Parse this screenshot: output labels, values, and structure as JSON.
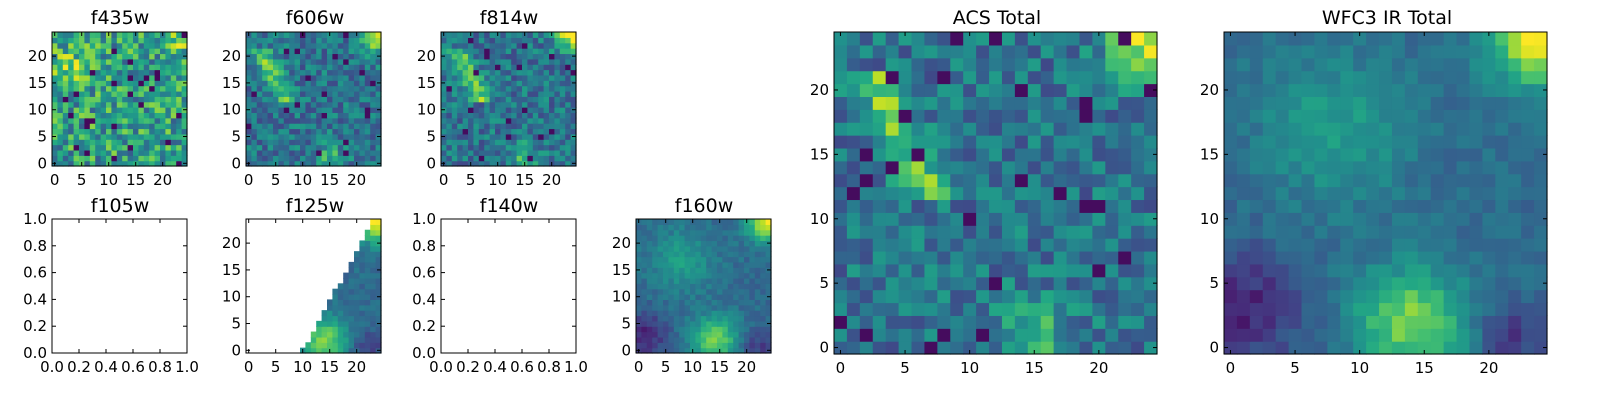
{
  "figure": {
    "colormap": "viridis"
  },
  "chart_data": [
    {
      "type": "heatmap",
      "title": "f435w",
      "kind": "image",
      "extent": [
        0,
        25
      ],
      "xticks": [
        "0",
        "5",
        "10",
        "15",
        "20"
      ],
      "yticks": [
        "0",
        "5",
        "10",
        "15",
        "20"
      ],
      "pattern": "noise_high",
      "seed": 11,
      "colormap": "viridis"
    },
    {
      "type": "heatmap",
      "title": "f606w",
      "kind": "image",
      "extent": [
        0,
        25
      ],
      "xticks": [
        "0",
        "5",
        "10",
        "15",
        "20"
      ],
      "yticks": [
        "0",
        "5",
        "10",
        "15",
        "20"
      ],
      "pattern": "acs",
      "seed": 23,
      "colormap": "viridis"
    },
    {
      "type": "heatmap",
      "title": "f814w",
      "kind": "image",
      "extent": [
        0,
        25
      ],
      "xticks": [
        "0",
        "5",
        "10",
        "15",
        "20"
      ],
      "yticks": [
        "0",
        "5",
        "10",
        "15",
        "20"
      ],
      "pattern": "acs",
      "seed": 37,
      "colormap": "viridis"
    },
    {
      "type": "heatmap",
      "title": "f105w",
      "kind": "empty",
      "xlim": [
        0,
        1
      ],
      "ylim": [
        0,
        1
      ],
      "xticks": [
        "0.0",
        "0.2",
        "0.4",
        "0.6",
        "0.8",
        "1.0"
      ],
      "yticks": [
        "0.0",
        "0.2",
        "0.4",
        "0.6",
        "0.8",
        "1.0"
      ]
    },
    {
      "type": "heatmap",
      "title": "f125w",
      "kind": "image",
      "extent": [
        0,
        25
      ],
      "xticks": [
        "0",
        "5",
        "10",
        "15",
        "20"
      ],
      "yticks": [
        "0",
        "5",
        "10",
        "15",
        "20"
      ],
      "pattern": "wfc3",
      "seed": 41,
      "mask": "wedge",
      "colormap": "viridis"
    },
    {
      "type": "heatmap",
      "title": "f140w",
      "kind": "empty",
      "xlim": [
        0,
        1
      ],
      "ylim": [
        0,
        1
      ],
      "xticks": [
        "0.0",
        "0.2",
        "0.4",
        "0.6",
        "0.8",
        "1.0"
      ],
      "yticks": [
        "0.0",
        "0.2",
        "0.4",
        "0.6",
        "0.8",
        "1.0"
      ]
    },
    {
      "type": "heatmap",
      "title": "f160w",
      "kind": "image",
      "extent": [
        0,
        25
      ],
      "xticks": [
        "0",
        "5",
        "10",
        "15",
        "20"
      ],
      "yticks": [
        "0",
        "5",
        "10",
        "15",
        "20"
      ],
      "pattern": "wfc3",
      "seed": 53,
      "colormap": "viridis"
    },
    {
      "type": "heatmap",
      "title": "ACS Total",
      "kind": "image",
      "extent": [
        0,
        25
      ],
      "xticks": [
        "0",
        "5",
        "10",
        "15",
        "20"
      ],
      "yticks": [
        "0",
        "5",
        "10",
        "15",
        "20"
      ],
      "pattern": "acs",
      "seed": 67,
      "colormap": "viridis"
    },
    {
      "type": "heatmap",
      "title": "WFC3 IR Total",
      "kind": "image",
      "extent": [
        0,
        25
      ],
      "xticks": [
        "0",
        "5",
        "10",
        "15",
        "20"
      ],
      "yticks": [
        "0",
        "5",
        "10",
        "15",
        "20"
      ],
      "pattern": "wfc3",
      "seed": 79,
      "colormap": "viridis"
    }
  ]
}
